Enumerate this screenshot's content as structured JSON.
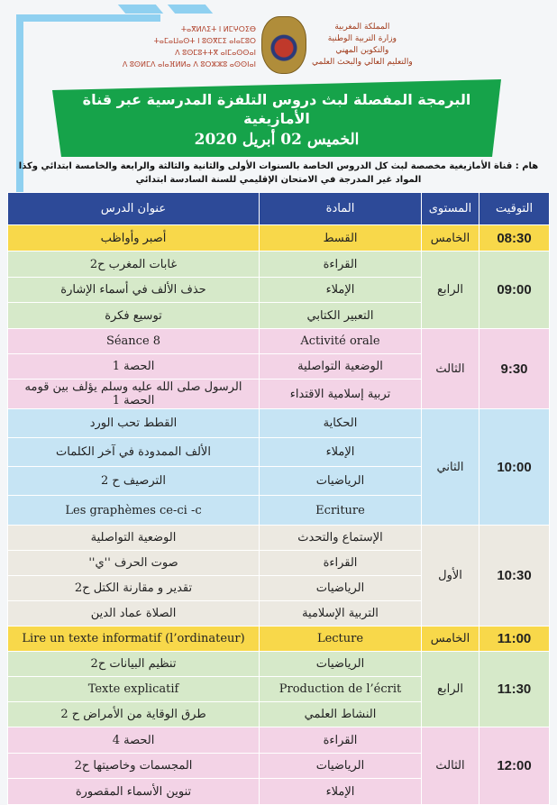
{
  "header": {
    "ministry_ar": [
      "المملكة المغربية",
      "وزارة التربية الوطنية",
      "والتكوين المهني",
      "والتعليم العالي والبحث العلمي"
    ],
    "ministry_tifinagh": [
      "ⵜⴰⴳⵍⴷⵉⵜ ⵏ ⵍⵎⵖⵔⵉⴱ",
      "ⵜⴰⵎⴰⵡⴰⵙⵜ ⵏ ⵓⵙⴳⵎⵉ ⴰⵏⴰⵎⵓⵔ",
      "ⴷ ⵓⵙⵎⵓⵜⵜⴳ ⴰⵏⵎⴰⵙⵙⴰⵏ",
      "ⴷ ⵓⵙⵍⵎⴷ ⴰⵏⴰⴼⵍⵍⴰ ⴷ ⵓⵔⵣⵣⵓ ⴰⵙⵙⵏⴰⵏ"
    ],
    "title": "البرمجة المفصلة لبث دروس التلفزة المدرسية عبر قناة الأمازيغية",
    "date": "الخميس 02 أبريل 2020",
    "note": "هام : قناة الأمازيغية مخصصة لبث كل الدروس الخاصة بالسنوات الأولى والثانية والثالثة والرابعة والخامسة ابتدائي وكذا المواد غير المدرجة في الامتحان الإقليمي للسنة السادسة ابتدائي"
  },
  "table": {
    "columns": [
      "التوقيت",
      "المستوى",
      "المادة",
      "عنوان الدرس"
    ],
    "blocks": [
      {
        "time": "08:30",
        "level": "الخامس",
        "color": "#f8d84a",
        "rows": [
          {
            "subject": "القسط",
            "lesson": "أصبر وأواظب"
          }
        ]
      },
      {
        "time": "09:00",
        "level": "الرابع",
        "color": "#d6e9c9",
        "rows": [
          {
            "subject": "القراءة",
            "lesson": "غابات المغرب ح2"
          },
          {
            "subject": "الإملاء",
            "lesson": "حذف الألف في أسماء الإشارة"
          },
          {
            "subject": "التعبير الكتابي",
            "lesson": "توسيع فكرة"
          }
        ]
      },
      {
        "time": "9:30",
        "level": "الثالث",
        "color": "#f3d3e6",
        "rows": [
          {
            "subject": "Activité orale",
            "lesson": "Séance 8"
          },
          {
            "subject": "الوضعية التواصلية",
            "lesson": "الحصة 1"
          },
          {
            "subject": "تربية إسلامية الاقتداء",
            "lesson": "الرسول صلى الله عليه وسلم يؤلف بين قومه الحصة 1"
          }
        ]
      },
      {
        "time": "10:00",
        "level": "الثاني",
        "color": "#c6e4f4",
        "rows": [
          {
            "subject": "الحكاية",
            "lesson": "القطط تحب الورد"
          },
          {
            "subject": "الإملاء",
            "lesson": "الألف الممدودة في آخر الكلمات"
          },
          {
            "subject": "الرياضيات",
            "lesson": "الترصيف ح 2"
          },
          {
            "subject": "Ecriture",
            "lesson": "Les graphèmes ce-ci -c"
          }
        ]
      },
      {
        "time": "10:30",
        "level": "الأول",
        "color": "#ece9e1",
        "rows": [
          {
            "subject": "الإستماع والتحدث",
            "lesson": "الوضعية التواصلية"
          },
          {
            "subject": "القراءة",
            "lesson": "صوت الحرف ''ي''"
          },
          {
            "subject": "الرياضيات",
            "lesson": "تقدير و مقارنة الكتل ح2"
          },
          {
            "subject": "التربية الإسلامية",
            "lesson": "الصلاة عماد الدين"
          }
        ]
      },
      {
        "time": "11:00",
        "level": "الخامس",
        "color": "#f8d84a",
        "rows": [
          {
            "subject": "Lecture",
            "lesson": "Lire un texte informatif (l’ordinateur)"
          }
        ]
      },
      {
        "time": "11:30",
        "level": "الرابع",
        "color": "#d6e9c9",
        "rows": [
          {
            "subject": "الرياضيات",
            "lesson": "تنظيم البيانات ح2"
          },
          {
            "subject": "Production de l’écrit",
            "lesson": "Texte explicatif"
          },
          {
            "subject": "النشاط العلمي",
            "lesson": "طرق الوقاية من الأمراض ح 2"
          }
        ]
      },
      {
        "time": "12:00",
        "level": "الثالث",
        "color": "#f3d3e6",
        "rows": [
          {
            "subject": "القراءة",
            "lesson": "الحصة 4"
          },
          {
            "subject": "الرياضيات",
            "lesson": "المجسمات وخاصيتها ح2"
          },
          {
            "subject": "الإملاء",
            "lesson": "تنوين الأسماء المقصورة"
          }
        ]
      }
    ]
  }
}
